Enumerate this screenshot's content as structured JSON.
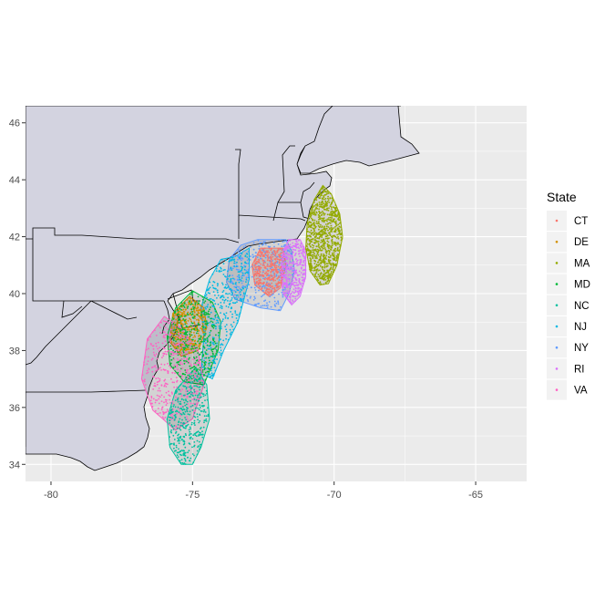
{
  "chart_data": {
    "type": "scatter",
    "title": "",
    "xlabel": "",
    "ylabel": "",
    "xlim": [
      -80.9,
      -63.2
    ],
    "ylim": [
      33.4,
      46.6
    ],
    "xticks": [
      -80,
      -75,
      -70,
      -65
    ],
    "yticks": [
      34,
      36,
      38,
      40,
      42,
      44,
      46
    ],
    "x_tick_labels": [
      "-80",
      "-75",
      "-70",
      "-65"
    ],
    "y_tick_labels": [
      "34",
      "36",
      "38",
      "40",
      "42",
      "44",
      "46"
    ],
    "grid": true,
    "background": "map of the US East Coast with state boundaries",
    "legend": {
      "title": "State",
      "position": "right",
      "items": [
        {
          "label": "CT",
          "color": "#F8766D"
        },
        {
          "label": "DE",
          "color": "#D39200"
        },
        {
          "label": "MA",
          "color": "#93AA00"
        },
        {
          "label": "MD",
          "color": "#00BA38"
        },
        {
          "label": "NC",
          "color": "#00C19F"
        },
        {
          "label": "NJ",
          "color": "#00B9E3"
        },
        {
          "label": "NY",
          "color": "#619CFF"
        },
        {
          "label": "RI",
          "color": "#DB72FB"
        },
        {
          "label": "VA",
          "color": "#FF61C3"
        }
      ]
    },
    "series": [
      {
        "name": "MA",
        "color": "#93AA00",
        "hull": [
          [
            -70.4,
            43.8
          ],
          [
            -70.1,
            43.5
          ],
          [
            -69.8,
            42.8
          ],
          [
            -69.7,
            42.0
          ],
          [
            -69.9,
            41.0
          ],
          [
            -70.2,
            40.35
          ],
          [
            -70.5,
            40.3
          ],
          [
            -70.85,
            40.8
          ],
          [
            -71.0,
            41.6
          ],
          [
            -70.95,
            42.5
          ],
          [
            -70.7,
            43.3
          ]
        ]
      },
      {
        "name": "NY",
        "color": "#619CFF",
        "hull": [
          [
            -72.7,
            41.9
          ],
          [
            -71.7,
            41.9
          ],
          [
            -71.5,
            41.5
          ],
          [
            -71.4,
            40.8
          ],
          [
            -71.6,
            40.0
          ],
          [
            -71.9,
            39.4
          ],
          [
            -72.6,
            39.5
          ],
          [
            -73.5,
            39.8
          ],
          [
            -73.8,
            40.4
          ],
          [
            -73.7,
            41.2
          ],
          [
            -73.3,
            41.7
          ]
        ]
      },
      {
        "name": "CT",
        "color": "#F8766D",
        "hull": [
          [
            -72.6,
            41.6
          ],
          [
            -71.8,
            41.6
          ],
          [
            -71.7,
            41.0
          ],
          [
            -71.9,
            40.2
          ],
          [
            -72.3,
            39.9
          ],
          [
            -72.8,
            40.3
          ],
          [
            -72.9,
            41.0
          ]
        ]
      },
      {
        "name": "RI",
        "color": "#DB72FB",
        "hull": [
          [
            -71.6,
            41.9
          ],
          [
            -71.2,
            41.9
          ],
          [
            -71.0,
            41.5
          ],
          [
            -71.0,
            40.6
          ],
          [
            -71.2,
            39.9
          ],
          [
            -71.5,
            39.6
          ],
          [
            -71.8,
            40.0
          ],
          [
            -71.9,
            40.8
          ],
          [
            -71.8,
            41.5
          ]
        ]
      },
      {
        "name": "NJ",
        "color": "#00B9E3",
        "hull": [
          [
            -74.0,
            41.2
          ],
          [
            -73.5,
            41.3
          ],
          [
            -73.0,
            41.6
          ],
          [
            -73.0,
            40.5
          ],
          [
            -73.4,
            39.0
          ],
          [
            -73.9,
            38.0
          ],
          [
            -74.3,
            37.0
          ],
          [
            -74.7,
            37.2
          ],
          [
            -74.6,
            38.5
          ],
          [
            -74.7,
            39.5
          ],
          [
            -74.4,
            40.5
          ]
        ]
      },
      {
        "name": "DE",
        "color": "#D39200",
        "hull": [
          [
            -75.1,
            39.9
          ],
          [
            -74.6,
            39.5
          ],
          [
            -74.5,
            38.8
          ],
          [
            -74.8,
            38.0
          ],
          [
            -75.4,
            37.8
          ],
          [
            -75.8,
            38.3
          ],
          [
            -75.7,
            39.3
          ]
        ]
      },
      {
        "name": "MD",
        "color": "#00BA38",
        "hull": [
          [
            -75.0,
            40.1
          ],
          [
            -74.3,
            39.7
          ],
          [
            -74.0,
            39.0
          ],
          [
            -74.1,
            38.0
          ],
          [
            -74.6,
            36.8
          ],
          [
            -75.3,
            36.9
          ],
          [
            -75.8,
            37.5
          ],
          [
            -75.9,
            38.5
          ],
          [
            -75.6,
            39.5
          ]
        ]
      },
      {
        "name": "VA",
        "color": "#FF61C3",
        "hull": [
          [
            -76.0,
            39.2
          ],
          [
            -75.4,
            38.8
          ],
          [
            -74.8,
            38.0
          ],
          [
            -74.6,
            36.8
          ],
          [
            -75.0,
            35.6
          ],
          [
            -75.6,
            35.2
          ],
          [
            -76.4,
            35.9
          ],
          [
            -76.8,
            37.0
          ],
          [
            -76.6,
            38.4
          ]
        ]
      },
      {
        "name": "NC",
        "color": "#00C19F",
        "hull": [
          [
            -74.9,
            37.4
          ],
          [
            -74.5,
            36.8
          ],
          [
            -74.4,
            35.6
          ],
          [
            -74.7,
            34.6
          ],
          [
            -75.0,
            34.0
          ],
          [
            -75.4,
            34.0
          ],
          [
            -75.8,
            34.6
          ],
          [
            -75.9,
            35.6
          ],
          [
            -75.6,
            36.6
          ]
        ]
      }
    ]
  }
}
